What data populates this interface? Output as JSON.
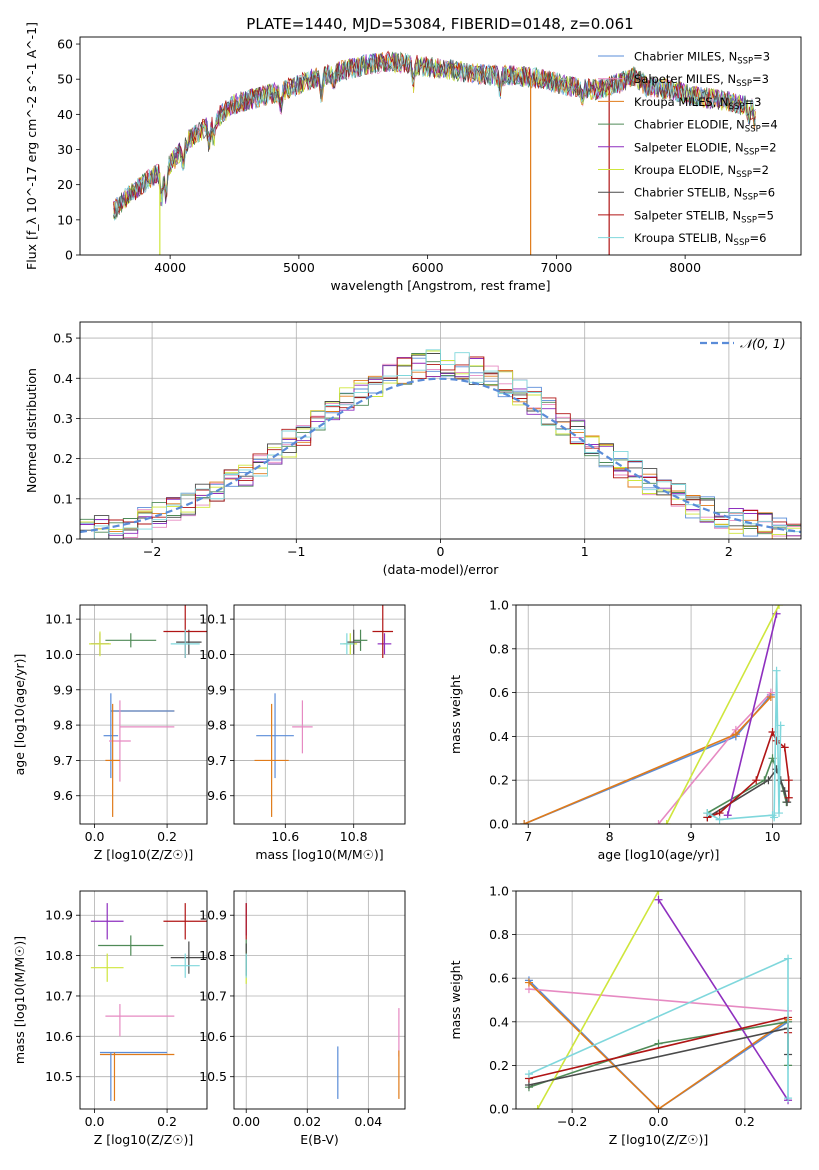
{
  "figure_title": "PLATE=1440, MJD=53084, FIBERID=0148, z=0.061",
  "models": [
    {
      "name": "Chabrier MILES",
      "nssp": "3",
      "color": "#5a8cd8"
    },
    {
      "name": "Salpeter MILES",
      "nssp": "3",
      "color": "#e68ac2"
    },
    {
      "name": "Kroupa MILES",
      "nssp": "3",
      "color": "#e07b1a"
    },
    {
      "name": "Chabrier ELODIE",
      "nssp": "4",
      "color": "#4f8a57"
    },
    {
      "name": "Salpeter ELODIE",
      "nssp": "2",
      "color": "#8e2fbf"
    },
    {
      "name": "Kroupa ELODIE",
      "nssp": "2",
      "color": "#cfe63c"
    },
    {
      "name": "Chabrier STELIB",
      "nssp": "6",
      "color": "#4a4a4a"
    },
    {
      "name": "Salpeter STELIB",
      "nssp": "5",
      "color": "#b01515"
    },
    {
      "name": "Kroupa STELIB",
      "nssp": "6",
      "color": "#7fd7dc"
    }
  ],
  "chart_data": [
    {
      "id": "spectrum",
      "type": "line",
      "xlabel": "wavelength [Angstrom, rest frame]",
      "ylabel": "Flux [f_λ 10^-17 erg cm^-2 s^-1 A^-1]",
      "xlim": [
        3300,
        8900
      ],
      "ylim": [
        0,
        62
      ],
      "xticks": [
        4000,
        5000,
        6000,
        7000,
        8000
      ],
      "yticks": [
        0,
        10,
        20,
        30,
        40,
        50,
        60
      ],
      "grid": false,
      "legend": "top-right",
      "continuum": {
        "x": [
          3550,
          3650,
          3750,
          3850,
          3950,
          4050,
          4150,
          4300,
          4500,
          4700,
          4900,
          5100,
          5300,
          5500,
          5700,
          5900,
          6100,
          6300,
          6500,
          6700,
          6900,
          7100,
          7300,
          7500,
          7600,
          7700,
          7900,
          8100,
          8300,
          8500
        ],
        "y": [
          12,
          16,
          19,
          22,
          24,
          28,
          33,
          37,
          43,
          45,
          47,
          50,
          52,
          54,
          55,
          54,
          53,
          52,
          51,
          51,
          50,
          48,
          47,
          49,
          51,
          48,
          47,
          45,
          44,
          42
        ]
      },
      "drops": [
        {
          "x": 3920,
          "y": 0,
          "model": "Kroupa ELODIE"
        },
        {
          "x": 6800,
          "y": 0,
          "model": "Kroupa MILES"
        },
        {
          "x": 7410,
          "y": 0,
          "model": "Salpeter STELIB"
        }
      ]
    },
    {
      "id": "residuals",
      "type": "histogram",
      "xlabel": "(data-model)/error",
      "ylabel": "Normed distribution",
      "xlim": [
        -2.5,
        2.5
      ],
      "ylim": [
        0,
        0.54
      ],
      "xticks": [
        -2,
        -1,
        0,
        1,
        2
      ],
      "yticks": [
        0,
        0.1,
        0.2,
        0.3,
        0.4,
        0.5
      ],
      "grid": true,
      "bin_width": 0.1,
      "reference_curve": {
        "name": "𝒩(0, 1)",
        "color": "#5a8cd8",
        "style": "dashed"
      },
      "legend": "top-right"
    },
    {
      "id": "age-vs-z",
      "type": "scatter",
      "xlabel": "Z [log10(Z/Z☉)]",
      "ylabel": "age [log10(age/yr)]",
      "xlim": [
        -0.04,
        0.31
      ],
      "ylim": [
        9.52,
        10.14
      ],
      "xticks": [
        0.0,
        0.2
      ],
      "yticks": [
        9.6,
        9.7,
        9.8,
        9.9,
        10.0,
        10.1
      ],
      "points": [
        {
          "model": "Chabrier MILES",
          "x": 0.045,
          "xerr": 0.02,
          "y": 9.77,
          "yerr": 0.12
        },
        {
          "model": "Salpeter MILES",
          "x": 0.07,
          "xerr": 0.03,
          "y": 9.755,
          "yerr": 0.115
        },
        {
          "model": "Kroupa MILES",
          "x": 0.05,
          "xerr": 0.02,
          "y": 9.7,
          "yerr": 0.16
        },
        {
          "model": "Chabrier ELODIE",
          "x": 0.1,
          "xerr": 0.07,
          "y": 10.04,
          "yerr": 0.02
        },
        {
          "model": "Salpeter ELODIE",
          "x": 0.015,
          "xerr": 0.025,
          "y": 10.03,
          "yerr": 0.03
        },
        {
          "model": "Kroupa ELODIE",
          "x": 0.015,
          "xerr": 0.03,
          "y": 10.03,
          "yerr": 0.035
        },
        {
          "model": "Chabrier STELIB",
          "x": 0.26,
          "xerr": 0.035,
          "y": 10.035,
          "yerr": 0.035
        },
        {
          "model": "Salpeter STELIB",
          "x": 0.25,
          "xerr": 0.06,
          "y": 10.065,
          "yerr": 0.075
        },
        {
          "model": "Kroupa STELIB",
          "x": 0.25,
          "xerr": 0.04,
          "y": 10.03,
          "yerr": 0.04
        }
      ],
      "extra_segments": [
        {
          "model": "Kroupa MILES",
          "x0": 0.045,
          "x1": 0.22,
          "y": 9.84
        },
        {
          "model": "Chabrier MILES",
          "x0": 0.045,
          "x1": 0.22,
          "y": 9.84
        },
        {
          "model": "Salpeter MILES",
          "x0": 0.07,
          "x1": 0.22,
          "y": 9.795
        }
      ]
    },
    {
      "id": "age-vs-mass",
      "type": "scatter",
      "xlabel": "mass [log10(M/M☉)]",
      "ylabel": "",
      "xlim": [
        10.45,
        10.95
      ],
      "ylim": [
        9.52,
        10.14
      ],
      "xticks": [
        10.6,
        10.8
      ],
      "yticks": [
        9.6,
        9.7,
        9.8,
        9.9,
        10.0,
        10.1
      ],
      "points": [
        {
          "model": "Chabrier MILES",
          "x": 10.57,
          "xerr": 0.055,
          "y": 9.77,
          "yerr": 0.12
        },
        {
          "model": "Salpeter MILES",
          "x": 10.65,
          "xerr": 0.03,
          "y": 9.795,
          "yerr": 0.075
        },
        {
          "model": "Kroupa MILES",
          "x": 10.56,
          "xerr": 0.05,
          "y": 9.7,
          "yerr": 0.16
        },
        {
          "model": "Chabrier ELODIE",
          "x": 10.82,
          "xerr": 0.02,
          "y": 10.04,
          "yerr": 0.03
        },
        {
          "model": "Salpeter ELODIE",
          "x": 10.89,
          "xerr": 0.02,
          "y": 10.03,
          "yerr": 0.03
        },
        {
          "model": "Kroupa ELODIE",
          "x": 10.79,
          "xerr": 0.02,
          "y": 10.03,
          "yerr": 0.03
        },
        {
          "model": "Chabrier STELIB",
          "x": 10.8,
          "xerr": 0.02,
          "y": 10.035,
          "yerr": 0.035
        },
        {
          "model": "Salpeter STELIB",
          "x": 10.885,
          "xerr": 0.03,
          "y": 10.065,
          "yerr": 0.075
        },
        {
          "model": "Kroupa STELIB",
          "x": 10.78,
          "xerr": 0.02,
          "y": 10.03,
          "yerr": 0.03
        }
      ]
    },
    {
      "id": "weights-vs-age",
      "type": "line",
      "xlabel": "age [log10(age/yr)]",
      "ylabel": "mass weight",
      "xlim": [
        6.85,
        10.35
      ],
      "ylim": [
        0,
        1
      ],
      "xticks": [
        7,
        8,
        9,
        10
      ],
      "yticks": [
        0.0,
        0.2,
        0.4,
        0.6,
        0.8,
        1.0
      ],
      "grid": true,
      "series": [
        {
          "model": "Chabrier MILES",
          "x": [
            6.95,
            9.55,
            9.98
          ],
          "y": [
            0.0,
            0.4,
            0.59
          ]
        },
        {
          "model": "Salpeter MILES",
          "x": [
            8.6,
            9.55,
            9.98
          ],
          "y": [
            0.0,
            0.43,
            0.6
          ]
        },
        {
          "model": "Kroupa MILES",
          "x": [
            6.95,
            9.55,
            9.98
          ],
          "y": [
            0.0,
            0.41,
            0.58
          ]
        },
        {
          "model": "Chabrier ELODIE",
          "x": [
            9.2,
            9.9,
            10.0,
            10.1,
            10.17
          ],
          "y": [
            0.05,
            0.2,
            0.3,
            0.2,
            0.1
          ]
        },
        {
          "model": "Salpeter ELODIE",
          "x": [
            9.45,
            10.05
          ],
          "y": [
            0.04,
            0.96
          ]
        },
        {
          "model": "Kroupa ELODIE",
          "x": [
            8.7,
            10.08
          ],
          "y": [
            0.0,
            1.0
          ]
        },
        {
          "model": "Chabrier STELIB",
          "x": [
            9.2,
            9.95,
            10.05,
            10.1,
            10.15,
            10.18
          ],
          "y": [
            0.03,
            0.2,
            0.25,
            0.2,
            0.15,
            0.1
          ]
        },
        {
          "model": "Salpeter STELIB",
          "x": [
            9.2,
            9.35,
            9.8,
            10.0,
            10.05,
            10.15,
            10.2,
            10.2
          ],
          "y": [
            0.03,
            0.05,
            0.2,
            0.42,
            0.38,
            0.35,
            0.2,
            0.12
          ]
        },
        {
          "model": "Kroupa STELIB",
          "x": [
            9.2,
            9.35,
            10.0,
            10.02,
            10.05,
            10.08,
            10.1
          ],
          "y": [
            0.05,
            0.02,
            0.04,
            0.03,
            0.7,
            0.05,
            0.45
          ]
        }
      ]
    },
    {
      "id": "mass-vs-z",
      "type": "scatter",
      "xlabel": "Z [log10(Z/Z☉)]",
      "ylabel": "mass [log10(M/M☉)]",
      "xlim": [
        -0.04,
        0.31
      ],
      "ylim": [
        10.42,
        10.96
      ],
      "xticks": [
        0.0,
        0.2
      ],
      "yticks": [
        10.5,
        10.6,
        10.7,
        10.8,
        10.9
      ],
      "points": [
        {
          "model": "Chabrier MILES",
          "x": 0.045,
          "xerr": 0.0,
          "y": 10.5,
          "yerr": 0.06
        },
        {
          "model": "Salpeter MILES",
          "x": 0.07,
          "xerr": 0.0,
          "y": 10.64,
          "yerr": 0.04
        },
        {
          "model": "Kroupa MILES",
          "x": 0.055,
          "xerr": 0.0,
          "y": 10.5,
          "yerr": 0.06
        },
        {
          "model": "Chabrier ELODIE",
          "x": 0.1,
          "xerr": 0.09,
          "y": 10.825,
          "yerr": 0.025
        },
        {
          "model": "Salpeter ELODIE",
          "x": 0.035,
          "xerr": 0.045,
          "y": 10.885,
          "yerr": 0.045
        },
        {
          "model": "Kroupa ELODIE",
          "x": 0.035,
          "xerr": 0.045,
          "y": 10.77,
          "yerr": 0.035
        },
        {
          "model": "Chabrier STELIB",
          "x": 0.26,
          "xerr": 0.05,
          "y": 10.795,
          "yerr": 0.04
        },
        {
          "model": "Salpeter STELIB",
          "x": 0.25,
          "xerr": 0.06,
          "y": 10.885,
          "yerr": 0.045
        },
        {
          "model": "Kroupa STELIB",
          "x": 0.25,
          "xerr": 0.04,
          "y": 10.775,
          "yerr": 0.03
        }
      ],
      "extra_segments": [
        {
          "model": "Salpeter MILES",
          "x0": 0.03,
          "x1": 0.22,
          "y": 10.65
        },
        {
          "model": "Chabrier MILES",
          "x0": 0.015,
          "x1": 0.2,
          "y": 10.56
        },
        {
          "model": "Kroupa MILES",
          "x0": 0.015,
          "x1": 0.22,
          "y": 10.555
        }
      ]
    },
    {
      "id": "mass-vs-ebv",
      "type": "scatter",
      "xlabel": "E(B-V)",
      "ylabel": "",
      "xlim": [
        -0.004,
        0.052
      ],
      "ylim": [
        10.42,
        10.96
      ],
      "xticks": [
        0.0,
        0.02,
        0.04
      ],
      "yticks": [
        10.5,
        10.6,
        10.7,
        10.8,
        10.9
      ],
      "points": [
        {
          "model": "Chabrier MILES",
          "x": 0.03,
          "xerr": 0,
          "y": 10.51,
          "yerr": 0.065
        },
        {
          "model": "Salpeter MILES",
          "x": 0.05,
          "xerr": 0,
          "y": 10.61,
          "yerr": 0.06
        },
        {
          "model": "Kroupa MILES",
          "x": 0.05,
          "xerr": 0,
          "y": 10.505,
          "yerr": 0.06
        },
        {
          "model": "Chabrier ELODIE",
          "x": 0.0,
          "xerr": 0,
          "y": 10.8,
          "yerr": 0.04
        },
        {
          "model": "Salpeter ELODIE",
          "x": 0.0,
          "xerr": 0,
          "y": 10.89,
          "yerr": 0.04
        },
        {
          "model": "Kroupa ELODIE",
          "x": 0.0,
          "xerr": 0,
          "y": 10.77,
          "yerr": 0.04
        },
        {
          "model": "Chabrier STELIB",
          "x": 0.0,
          "xerr": 0,
          "y": 10.79,
          "yerr": 0.04
        },
        {
          "model": "Salpeter STELIB",
          "x": 0.0,
          "xerr": 0,
          "y": 10.885,
          "yerr": 0.045
        },
        {
          "model": "Kroupa STELIB",
          "x": 0.0,
          "xerr": 0,
          "y": 10.775,
          "yerr": 0.03
        }
      ]
    },
    {
      "id": "weights-vs-z",
      "type": "line",
      "xlabel": "Z [log10(Z/Z☉)]",
      "ylabel": "mass weight",
      "xlim": [
        -0.33,
        0.33
      ],
      "ylim": [
        0,
        1
      ],
      "xticks": [
        -0.2,
        0.0,
        0.2
      ],
      "yticks": [
        0.0,
        0.2,
        0.4,
        0.6,
        0.8,
        1.0
      ],
      "grid": true,
      "series": [
        {
          "model": "Chabrier MILES",
          "x": [
            -0.3,
            0.0,
            0.3
          ],
          "y": [
            0.59,
            0.0,
            0.4
          ]
        },
        {
          "model": "Salpeter MILES",
          "x": [
            -0.3,
            0.3
          ],
          "y": [
            0.55,
            0.45
          ]
        },
        {
          "model": "Kroupa MILES",
          "x": [
            -0.3,
            0.0,
            0.3
          ],
          "y": [
            0.58,
            0.0,
            0.41
          ]
        },
        {
          "model": "Chabrier ELODIE",
          "x": [
            -0.3,
            0.0,
            0.3,
            0.3
          ],
          "y": [
            0.1,
            0.3,
            0.4,
            0.2
          ]
        },
        {
          "model": "Salpeter ELODIE",
          "x": [
            0.0,
            0.3
          ],
          "y": [
            0.96,
            0.04
          ]
        },
        {
          "model": "Kroupa ELODIE",
          "x": [
            -0.28,
            0.0
          ],
          "y": [
            0.0,
            1.0
          ]
        },
        {
          "model": "Chabrier STELIB",
          "x": [
            -0.3,
            0.3,
            0.3
          ],
          "y": [
            0.11,
            0.37,
            0.25
          ]
        },
        {
          "model": "Salpeter STELIB",
          "x": [
            -0.3,
            0.3,
            0.3
          ],
          "y": [
            0.14,
            0.42,
            0.35
          ]
        },
        {
          "model": "Kroupa STELIB",
          "x": [
            -0.3,
            0.3,
            0.3
          ],
          "y": [
            0.16,
            0.69,
            0.05
          ]
        }
      ]
    }
  ]
}
